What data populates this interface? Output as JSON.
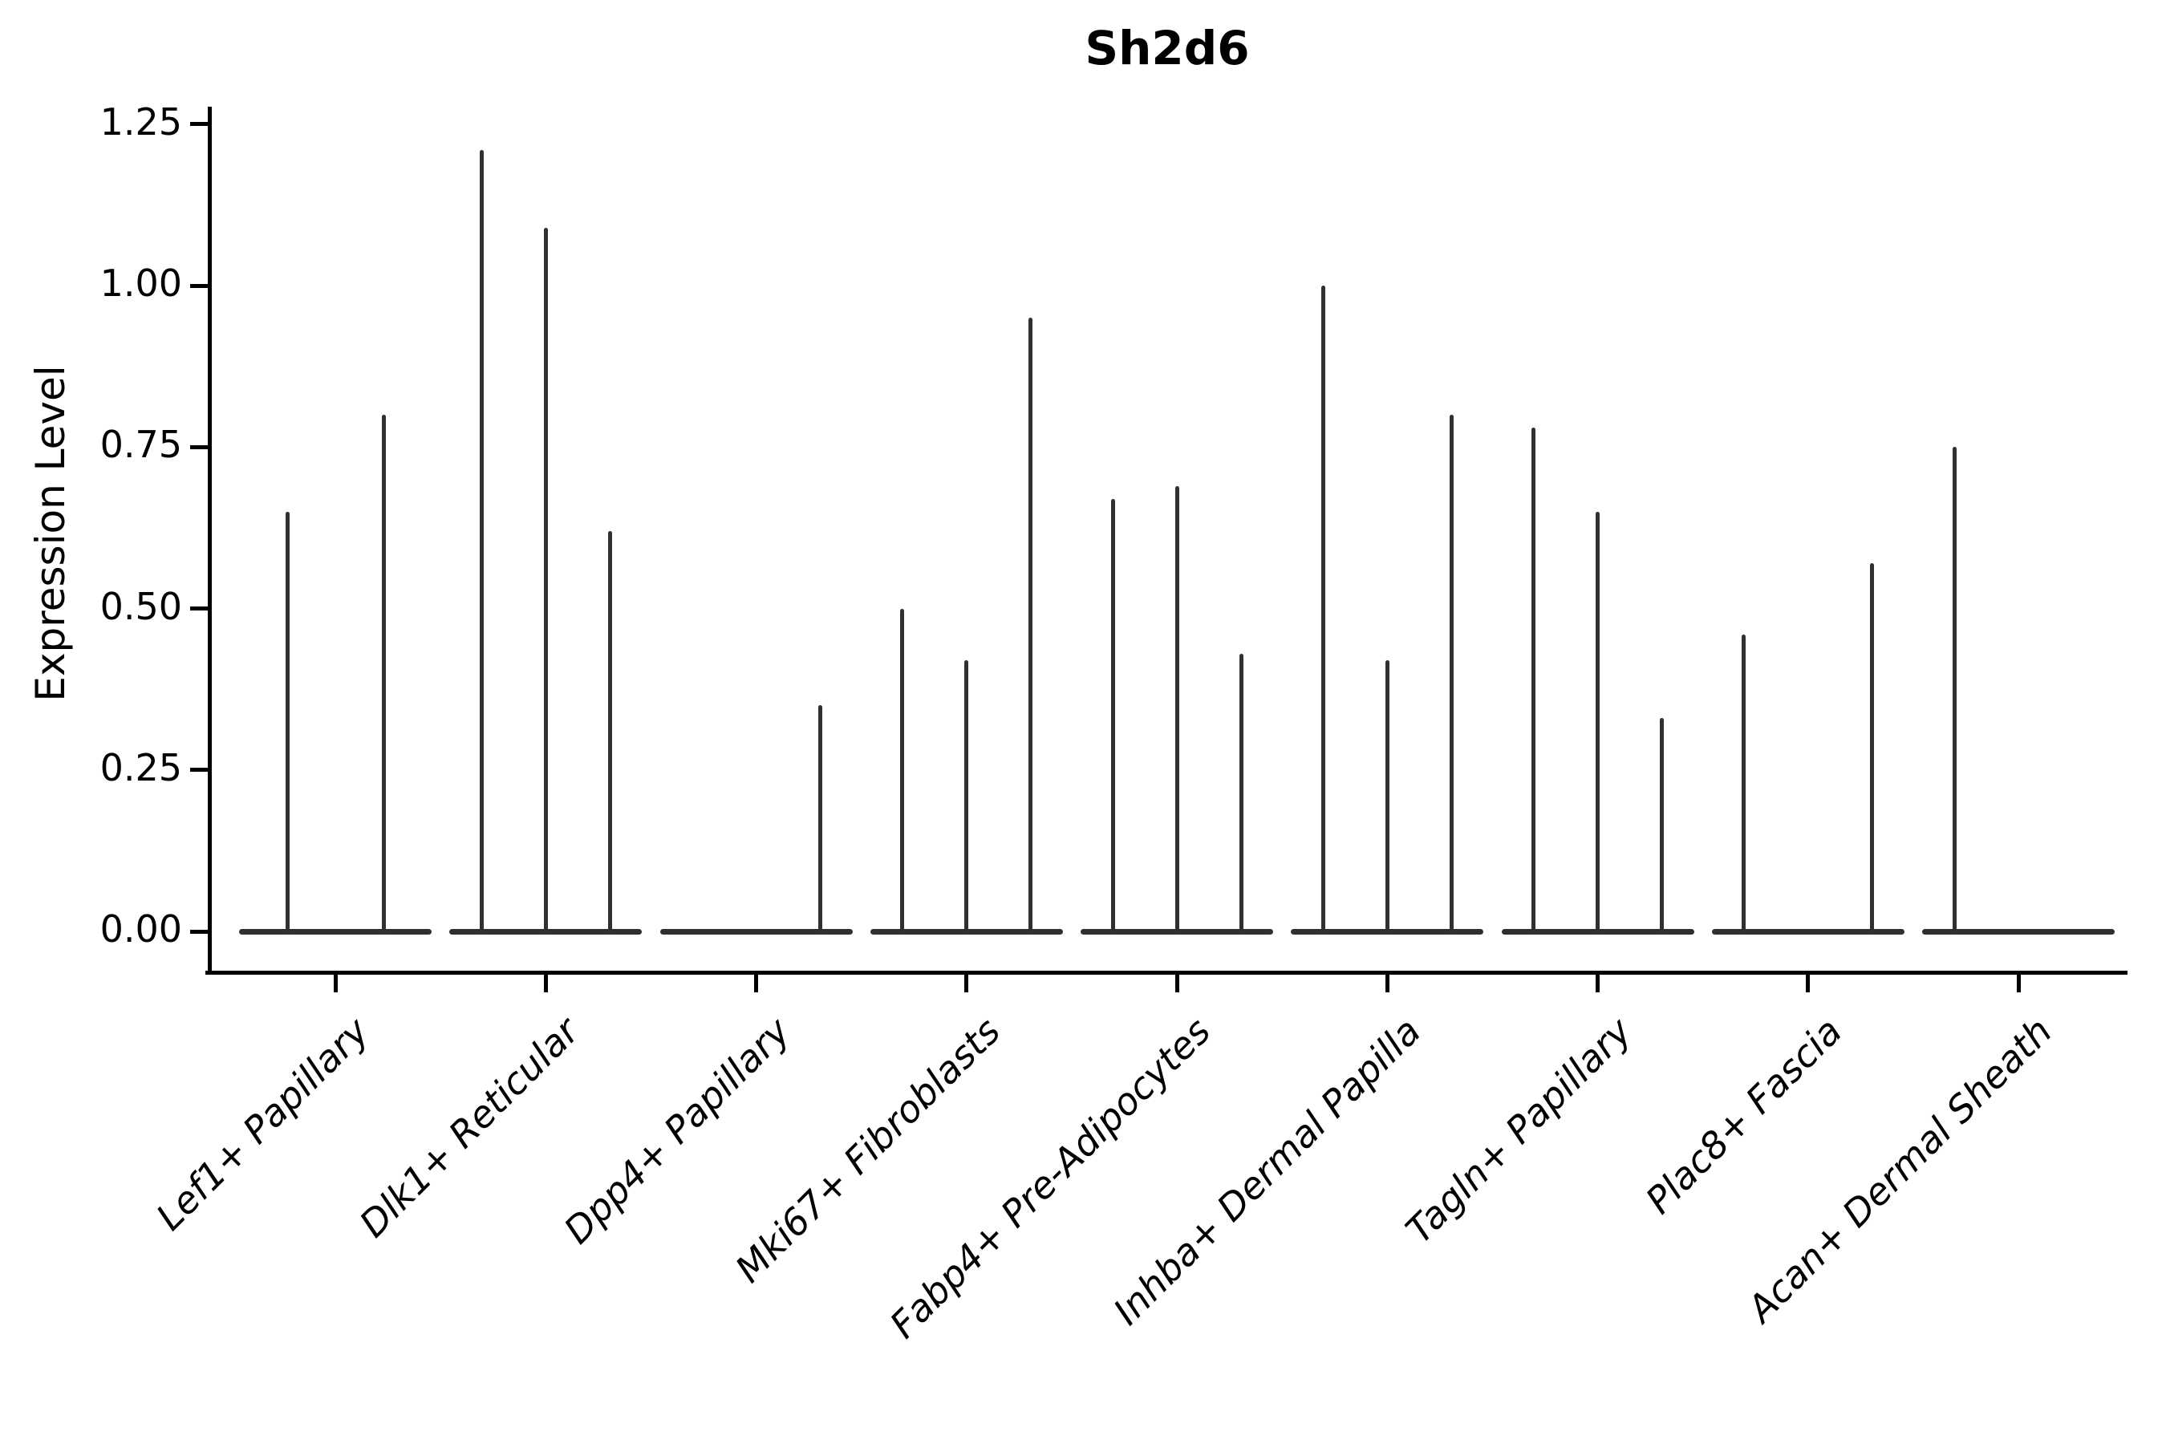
{
  "chart_data": {
    "type": "violin",
    "title": "Sh2d6",
    "ylabel": "Expression Level",
    "xlabel": "",
    "ylim": [
      -0.06,
      1.28
    ],
    "yticks": [
      0,
      0.25,
      0.5,
      0.75,
      1.0,
      1.25
    ],
    "ytick_labels": [
      "0.00",
      "0.25",
      "0.50",
      "0.75",
      "1.00",
      "1.25"
    ],
    "grid": false,
    "legend_position": "none",
    "x_label_rotation_deg": 45,
    "description": "Needle-thin violin plots of Sh2d6 expression per fibroblast cluster; each category holds 2-3 sub-violins whose flat bases sit at 0 with a thin spike up to the max expression value (null = all-zero sub-violin with no spike).",
    "categories": [
      "Lef1+ Papillary",
      "Dlk1+ Reticular",
      "Dpp4+ Papillary",
      "Mki67+ Fibroblasts",
      "Fabp4+ Pre-Adipocytes",
      "Inhba+ Dermal Papilla",
      "Tagln+ Papillary",
      "Plac8+ Fascia",
      "Acan+ Dermal Sheath"
    ],
    "groups": [
      {
        "category": "Lef1+ Papillary",
        "n_violins": 2,
        "spike_max_values": [
          0.65,
          0.8
        ]
      },
      {
        "category": "Dlk1+ Reticular",
        "n_violins": 3,
        "spike_max_values": [
          1.21,
          1.09,
          0.62
        ]
      },
      {
        "category": "Dpp4+ Papillary",
        "n_violins": 3,
        "spike_max_values": [
          null,
          null,
          0.35
        ]
      },
      {
        "category": "Mki67+ Fibroblasts",
        "n_violins": 3,
        "spike_max_values": [
          0.5,
          0.42,
          0.95
        ]
      },
      {
        "category": "Fabp4+ Pre-Adipocytes",
        "n_violins": 3,
        "spike_max_values": [
          0.67,
          0.69,
          0.43
        ]
      },
      {
        "category": "Inhba+ Dermal Papilla",
        "n_violins": 3,
        "spike_max_values": [
          1.0,
          0.42,
          0.8
        ]
      },
      {
        "category": "Tagln+ Papillary",
        "n_violins": 3,
        "spike_max_values": [
          0.78,
          0.65,
          0.33
        ]
      },
      {
        "category": "Plac8+ Fascia",
        "n_violins": 3,
        "spike_max_values": [
          0.46,
          null,
          0.57
        ]
      },
      {
        "category": "Acan+ Dermal Sheath",
        "n_violins": 3,
        "spike_max_values": [
          0.75,
          null,
          null
        ]
      }
    ],
    "baseline_value": 0,
    "colors": {
      "violin": "#303030",
      "axis": "#000000",
      "text": "#000000",
      "background": "#ffffff"
    }
  }
}
